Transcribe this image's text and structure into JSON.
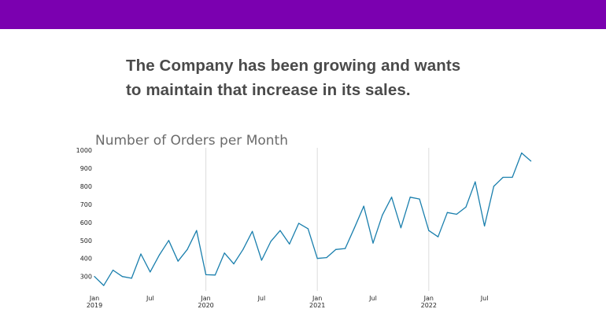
{
  "colors": {
    "header_bar": "#7B00B0",
    "series_line": "#1a7fad",
    "gridline": "#dddddd",
    "headline_text": "#4a4a4a"
  },
  "headline": {
    "line1": "The Company has been growing and wants",
    "line2": "to maintain that increase in its sales."
  },
  "chart_data": {
    "type": "line",
    "title": "Number of Orders per Month",
    "xlabel": "",
    "ylabel": "",
    "ylim": [
      220,
      1005
    ],
    "yticks": [
      300,
      400,
      500,
      600,
      700,
      800,
      900,
      1000
    ],
    "x_ticks": [
      {
        "index": 0,
        "month": "Jan",
        "year": "2019"
      },
      {
        "index": 6,
        "month": "Jul",
        "year": ""
      },
      {
        "index": 12,
        "month": "Jan",
        "year": "2020"
      },
      {
        "index": 18,
        "month": "Jul",
        "year": ""
      },
      {
        "index": 24,
        "month": "Jan",
        "year": "2021"
      },
      {
        "index": 30,
        "month": "Jul",
        "year": ""
      },
      {
        "index": 36,
        "month": "Jan",
        "year": "2022"
      },
      {
        "index": 42,
        "month": "Jul",
        "year": ""
      }
    ],
    "vertical_gridlines_at_index": [
      12,
      24,
      36
    ],
    "grid": "vertical-at-years",
    "series": [
      {
        "x_start": "2019-01",
        "values": [
          300,
          250,
          335,
          300,
          290,
          425,
          325,
          420,
          500,
          385,
          450,
          555,
          310,
          308,
          430,
          370,
          450,
          550,
          390,
          495,
          555,
          480,
          595,
          565,
          400,
          405,
          450,
          455,
          570,
          690,
          485,
          640,
          740,
          570,
          740,
          730,
          555,
          520,
          655,
          645,
          685,
          825,
          580,
          800,
          850,
          850,
          985,
          940
        ]
      }
    ]
  }
}
